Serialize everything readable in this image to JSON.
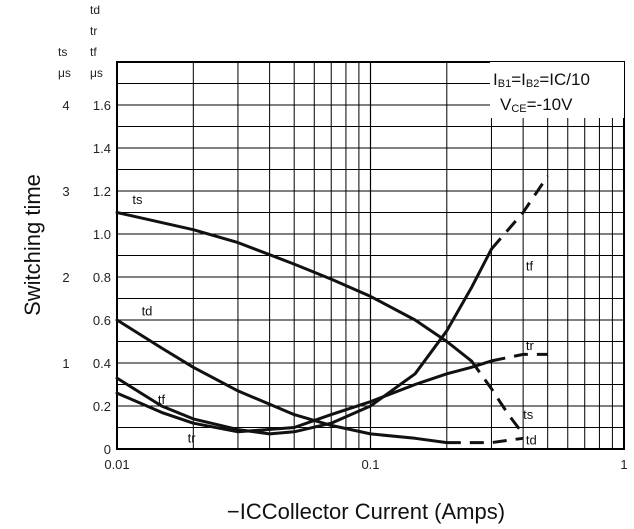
{
  "chart_data": {
    "type": "line",
    "x_scale": "log",
    "x_range": [
      0.01,
      1
    ],
    "x_ticks": [
      "0.01",
      "0.1",
      "1"
    ],
    "y_range": [
      0,
      1.8
    ],
    "y_ticks": [
      "0",
      "0.2",
      "0.4",
      "0.6",
      "0.8",
      "1.0",
      "1.2",
      "1.4",
      "1.6"
    ],
    "y_ts_ticks": [
      "1",
      "2",
      "3",
      "4"
    ],
    "y_unit_ts": [
      "ts",
      "μs"
    ],
    "y_unit_right": [
      "td",
      "tr",
      "tf",
      "μs"
    ],
    "ylabel": "Switching time",
    "xlabel_prefix": "−IC",
    "xlabel": "Collector Current (Amps)",
    "grid": true,
    "conditions": {
      "line1": {
        "ib1": "B1",
        "ib2": "B2",
        "ic": "C/10"
      },
      "line2": {
        "vce": "CE",
        "value": "=-10V"
      }
    },
    "series": [
      {
        "name": "ts",
        "x": [
          0.01,
          0.02,
          0.03,
          0.05,
          0.07,
          0.1,
          0.15,
          0.2,
          0.25
        ],
        "y": [
          1.1,
          1.02,
          0.96,
          0.86,
          0.79,
          0.71,
          0.6,
          0.5,
          0.41
        ],
        "dashed_x": [
          0.25,
          0.3,
          0.35,
          0.4
        ],
        "dashed_y": [
          0.41,
          0.28,
          0.16,
          0.07
        ]
      },
      {
        "name": "td",
        "x": [
          0.01,
          0.015,
          0.02,
          0.03,
          0.05,
          0.07,
          0.1,
          0.15,
          0.2
        ],
        "y": [
          0.6,
          0.47,
          0.38,
          0.27,
          0.16,
          0.11,
          0.07,
          0.05,
          0.03
        ],
        "dashed_x": [
          0.2,
          0.3,
          0.4
        ],
        "dashed_y": [
          0.03,
          0.03,
          0.05
        ]
      },
      {
        "name": "tf",
        "x": [
          0.01,
          0.015,
          0.02,
          0.03,
          0.04,
          0.05,
          0.07,
          0.1,
          0.15,
          0.2,
          0.25,
          0.3
        ],
        "y": [
          0.33,
          0.2,
          0.14,
          0.09,
          0.07,
          0.08,
          0.12,
          0.2,
          0.35,
          0.55,
          0.75,
          0.93
        ],
        "dashed_x": [
          0.3,
          0.4,
          0.5
        ],
        "dashed_y": [
          0.93,
          1.1,
          1.27
        ]
      },
      {
        "name": "tr",
        "x": [
          0.01,
          0.015,
          0.02,
          0.03,
          0.05,
          0.07,
          0.1,
          0.15,
          0.2,
          0.25,
          0.3
        ],
        "y": [
          0.26,
          0.17,
          0.12,
          0.08,
          0.1,
          0.16,
          0.22,
          0.3,
          0.35,
          0.38,
          0.41
        ],
        "dashed_x": [
          0.3,
          0.4,
          0.5
        ],
        "dashed_y": [
          0.41,
          0.44,
          0.44
        ]
      }
    ]
  }
}
